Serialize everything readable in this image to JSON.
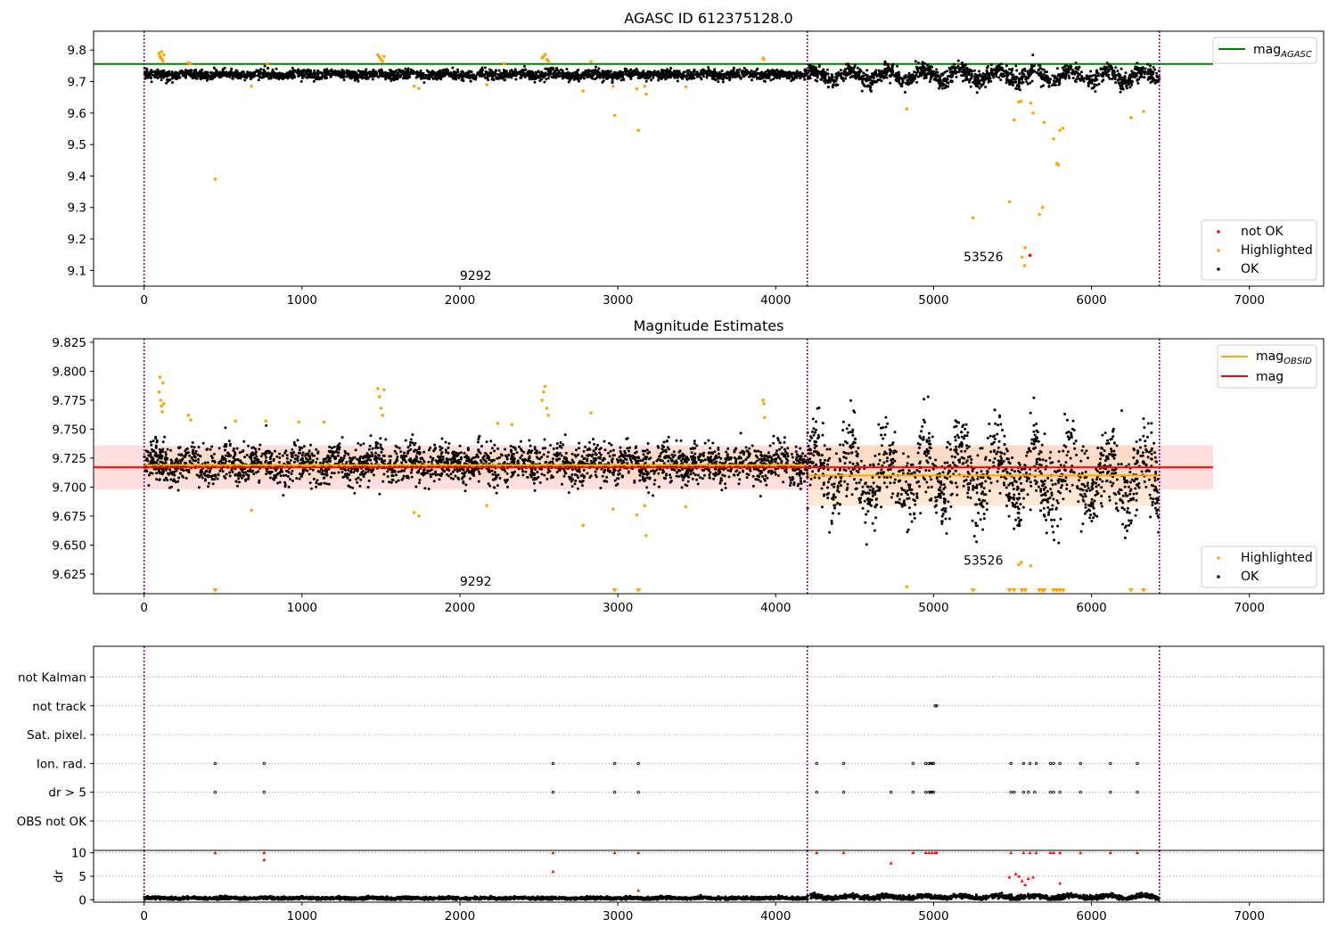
{
  "figure": {
    "title": "AGASC ID 612375128.0",
    "subtitle": "Magnitude Estimates"
  },
  "colors": {
    "ok": "#000000",
    "highlighted": "#ffa500",
    "not_ok": "#ff0000",
    "agasc_line": "#008000",
    "obsid_line": "#ffa500",
    "mean_line": "#ff0000",
    "obsid_divider": "#800080",
    "grid": "#b0b0b0",
    "band_mean": "#ffc8c8",
    "band_obsid": "#ffd9b8"
  },
  "chart_data": [
    {
      "id": "agasc_magnitude",
      "type": "scatter",
      "title": "AGASC ID 612375128.0",
      "xlabel": "",
      "ylabel": "",
      "xlim": [
        -320,
        7470
      ],
      "ylim": [
        9.05,
        9.86
      ],
      "xticks": [
        "0",
        "1000",
        "2000",
        "3000",
        "4000",
        "5000",
        "6000",
        "7000"
      ],
      "yticks": [
        "9.1",
        "9.2",
        "9.3",
        "9.4",
        "9.5",
        "9.6",
        "9.7",
        "9.8"
      ],
      "obsid_boundaries": [
        0,
        4200,
        6430
      ],
      "annotations": [
        {
          "text": "9292",
          "x": 2100,
          "y": 9.07
        },
        {
          "text": "53526",
          "x": 5315,
          "y": 9.13
        }
      ],
      "reference_lines": [
        {
          "name": "mag_AGASC",
          "y": 9.756,
          "x_range": [
            -320,
            6770
          ]
        }
      ],
      "legend": {
        "placement": "top-right",
        "line_entries": [
          {
            "label": "mag",
            "subscript": "AGASC"
          }
        ],
        "marker_entries": [
          "not OK",
          "Highlighted",
          "OK"
        ]
      },
      "ok_trend": {
        "segments": [
          {
            "x_start": 0,
            "x_end": 4200,
            "mean": 9.722,
            "spread": 0.01
          },
          {
            "x_start": 4200,
            "x_end": 6430,
            "mean": 9.718,
            "spread": 0.018
          }
        ]
      },
      "highlighted": [
        [
          95,
          9.79
        ],
        [
          100,
          9.78
        ],
        [
          105,
          9.775
        ],
        [
          110,
          9.795
        ],
        [
          115,
          9.77
        ],
        [
          120,
          9.765
        ],
        [
          125,
          9.785
        ],
        [
          280,
          9.76
        ],
        [
          295,
          9.757
        ],
        [
          450,
          9.39
        ],
        [
          680,
          9.685
        ],
        [
          780,
          9.757
        ],
        [
          1480,
          9.785
        ],
        [
          1490,
          9.778
        ],
        [
          1500,
          9.77
        ],
        [
          1510,
          9.765
        ],
        [
          1520,
          9.78
        ],
        [
          1710,
          9.685
        ],
        [
          1740,
          9.678
        ],
        [
          2170,
          9.69
        ],
        [
          2280,
          9.757
        ],
        [
          2520,
          9.775
        ],
        [
          2530,
          9.78
        ],
        [
          2540,
          9.786
        ],
        [
          2550,
          9.77
        ],
        [
          2560,
          9.765
        ],
        [
          2780,
          9.67
        ],
        [
          2830,
          9.763
        ],
        [
          2970,
          9.685
        ],
        [
          2980,
          9.593
        ],
        [
          3120,
          9.677
        ],
        [
          3130,
          9.545
        ],
        [
          3170,
          9.685
        ],
        [
          3180,
          9.66
        ],
        [
          3430,
          9.683
        ],
        [
          3920,
          9.775
        ],
        [
          3925,
          9.77
        ],
        [
          4830,
          9.613
        ],
        [
          5250,
          9.267
        ],
        [
          5480,
          9.318
        ],
        [
          5510,
          9.578
        ],
        [
          5540,
          9.635
        ],
        [
          5555,
          9.638
        ],
        [
          5560,
          9.142
        ],
        [
          5575,
          9.115
        ],
        [
          5580,
          9.172
        ],
        [
          5615,
          9.632
        ],
        [
          5630,
          9.6
        ],
        [
          5670,
          9.278
        ],
        [
          5690,
          9.3
        ],
        [
          5700,
          9.57
        ],
        [
          5760,
          9.518
        ],
        [
          5780,
          9.44
        ],
        [
          5790,
          9.435
        ],
        [
          5800,
          9.545
        ],
        [
          5820,
          9.552
        ],
        [
          6250,
          9.585
        ],
        [
          6330,
          9.605
        ]
      ],
      "not_ok": [
        [
          5610,
          9.148
        ]
      ]
    },
    {
      "id": "magnitude_estimates",
      "type": "scatter",
      "title": "Magnitude Estimates",
      "xlabel": "",
      "ylabel": "",
      "xlim": [
        -320,
        7470
      ],
      "ylim": [
        9.608,
        9.828
      ],
      "xticks": [
        "0",
        "1000",
        "2000",
        "3000",
        "4000",
        "5000",
        "6000",
        "7000"
      ],
      "yticks": [
        "9.625",
        "9.650",
        "9.675",
        "9.700",
        "9.725",
        "9.750",
        "9.775",
        "9.800",
        "9.825"
      ],
      "obsid_boundaries": [
        0,
        4200,
        6430
      ],
      "annotations": [
        {
          "text": "9292",
          "x": 2100,
          "y": 9.615
        },
        {
          "text": "53526",
          "x": 5315,
          "y": 9.633
        }
      ],
      "reference_lines": [
        {
          "name": "mag",
          "y": 9.717,
          "x_range": [
            -320,
            6770
          ],
          "band": [
            9.698,
            9.736
          ]
        }
      ],
      "obsid_segments": [
        {
          "x_start": 0,
          "x_end": 4200,
          "mag": 9.719,
          "band": [
            9.707,
            9.731
          ]
        },
        {
          "x_start": 4200,
          "x_end": 6430,
          "mag": 9.71,
          "band": [
            9.684,
            9.736
          ]
        }
      ],
      "legend": {
        "placement": "top-right",
        "line_entries": [
          {
            "label": "mag",
            "subscript": "OBSID"
          },
          {
            "label": "mag",
            "subscript": ""
          }
        ],
        "marker_entries": [
          "Highlighted",
          "OK"
        ]
      },
      "ok_trend": {
        "segments": [
          {
            "x_start": 0,
            "x_end": 4200,
            "mean": 9.72,
            "spread": 0.011
          },
          {
            "x_start": 4200,
            "x_end": 6430,
            "mean": 9.71,
            "spread": 0.022
          }
        ]
      },
      "highlighted": [
        [
          95,
          9.782
        ],
        [
          100,
          9.795
        ],
        [
          105,
          9.775
        ],
        [
          110,
          9.77
        ],
        [
          115,
          9.765
        ],
        [
          120,
          9.79
        ],
        [
          125,
          9.772
        ],
        [
          280,
          9.762
        ],
        [
          295,
          9.758
        ],
        [
          580,
          9.757
        ],
        [
          680,
          9.68
        ],
        [
          770,
          9.757
        ],
        [
          980,
          9.756
        ],
        [
          1140,
          9.756
        ],
        [
          1480,
          9.785
        ],
        [
          1490,
          9.778
        ],
        [
          1500,
          9.768
        ],
        [
          1510,
          9.762
        ],
        [
          1520,
          9.784
        ],
        [
          1710,
          9.678
        ],
        [
          1740,
          9.675
        ],
        [
          2170,
          9.684
        ],
        [
          2240,
          9.755
        ],
        [
          2330,
          9.754
        ],
        [
          2520,
          9.775
        ],
        [
          2530,
          9.782
        ],
        [
          2540,
          9.787
        ],
        [
          2550,
          9.768
        ],
        [
          2560,
          9.762
        ],
        [
          2780,
          9.667
        ],
        [
          2830,
          9.764
        ],
        [
          2970,
          9.681
        ],
        [
          3120,
          9.676
        ],
        [
          3170,
          9.684
        ],
        [
          3180,
          9.658
        ],
        [
          3430,
          9.683
        ],
        [
          3920,
          9.775
        ],
        [
          3925,
          9.772
        ],
        [
          3930,
          9.76
        ],
        [
          4830,
          9.614
        ],
        [
          5540,
          9.633
        ],
        [
          5555,
          9.635
        ],
        [
          5615,
          9.632
        ]
      ],
      "off_scale_low": [
        450,
        2980,
        3130,
        5250,
        5480,
        5510,
        5560,
        5580,
        5670,
        5690,
        5700,
        5760,
        5780,
        5800,
        5820,
        6250,
        6330
      ]
    },
    {
      "id": "flags",
      "type": "scatter",
      "title": "",
      "xlim": [
        -320,
        7470
      ],
      "categories": [
        "OBS not OK",
        "dr > 5",
        "Ion. rad.",
        "Sat. pixel.",
        "not track",
        "not Kalman"
      ],
      "xticks": [
        "0",
        "1000",
        "2000",
        "3000",
        "4000",
        "5000",
        "6000",
        "7000"
      ],
      "obsid_boundaries": [
        0,
        4200,
        6430
      ],
      "points": [
        {
          "category": "Ion. rad.",
          "x": [
            450,
            760,
            2590,
            2980,
            3130,
            4260,
            4430,
            4870,
            4950,
            4970,
            4980,
            4990,
            5000,
            5490,
            5570,
            5610,
            5650,
            5740,
            5760,
            5800,
            5930,
            6120,
            6290
          ]
        },
        {
          "category": "dr > 5",
          "x": [
            450,
            760,
            2590,
            2980,
            3130,
            4260,
            4430,
            4730,
            4870,
            4950,
            4970,
            4980,
            4990,
            5000,
            5490,
            5510,
            5570,
            5600,
            5640,
            5740,
            5760,
            5800,
            5930,
            6120,
            6290
          ]
        },
        {
          "category": "not track",
          "x": [
            5010,
            5020
          ]
        }
      ]
    },
    {
      "id": "dr",
      "type": "scatter",
      "title": "",
      "xlabel": "",
      "ylabel": "dr",
      "xlim": [
        -320,
        7470
      ],
      "ylim": [
        -0.5,
        10.5
      ],
      "xticks": [
        "0",
        "1000",
        "2000",
        "3000",
        "4000",
        "5000",
        "6000",
        "7000"
      ],
      "yticks": [
        "0",
        "5",
        "10"
      ],
      "obsid_boundaries": [
        0,
        4200,
        6430
      ],
      "ok_trend": {
        "segments": [
          {
            "x_start": 0,
            "x_end": 4200,
            "mean": 0.35,
            "spread": 0.2
          },
          {
            "x_start": 4200,
            "x_end": 6430,
            "mean": 0.6,
            "spread": 0.3
          }
        ]
      },
      "flagged": [
        [
          450,
          10
        ],
        [
          760,
          10
        ],
        [
          760,
          8.5
        ],
        [
          2590,
          10
        ],
        [
          2590,
          6
        ],
        [
          2980,
          10
        ],
        [
          3130,
          10
        ],
        [
          3130,
          2
        ],
        [
          4260,
          10
        ],
        [
          4430,
          10
        ],
        [
          4730,
          7.8
        ],
        [
          4870,
          10
        ],
        [
          4950,
          10
        ],
        [
          4970,
          10
        ],
        [
          4990,
          10
        ],
        [
          5010,
          10
        ],
        [
          5020,
          10
        ],
        [
          5480,
          4.8
        ],
        [
          5490,
          10
        ],
        [
          5520,
          5.5
        ],
        [
          5540,
          5
        ],
        [
          5560,
          4
        ],
        [
          5570,
          10
        ],
        [
          5580,
          3.2
        ],
        [
          5600,
          4.5
        ],
        [
          5610,
          10
        ],
        [
          5630,
          4.8
        ],
        [
          5650,
          10
        ],
        [
          5740,
          10
        ],
        [
          5760,
          10
        ],
        [
          5800,
          10
        ],
        [
          5800,
          3.5
        ],
        [
          5930,
          10
        ],
        [
          6120,
          10
        ],
        [
          6290,
          10
        ]
      ]
    }
  ]
}
